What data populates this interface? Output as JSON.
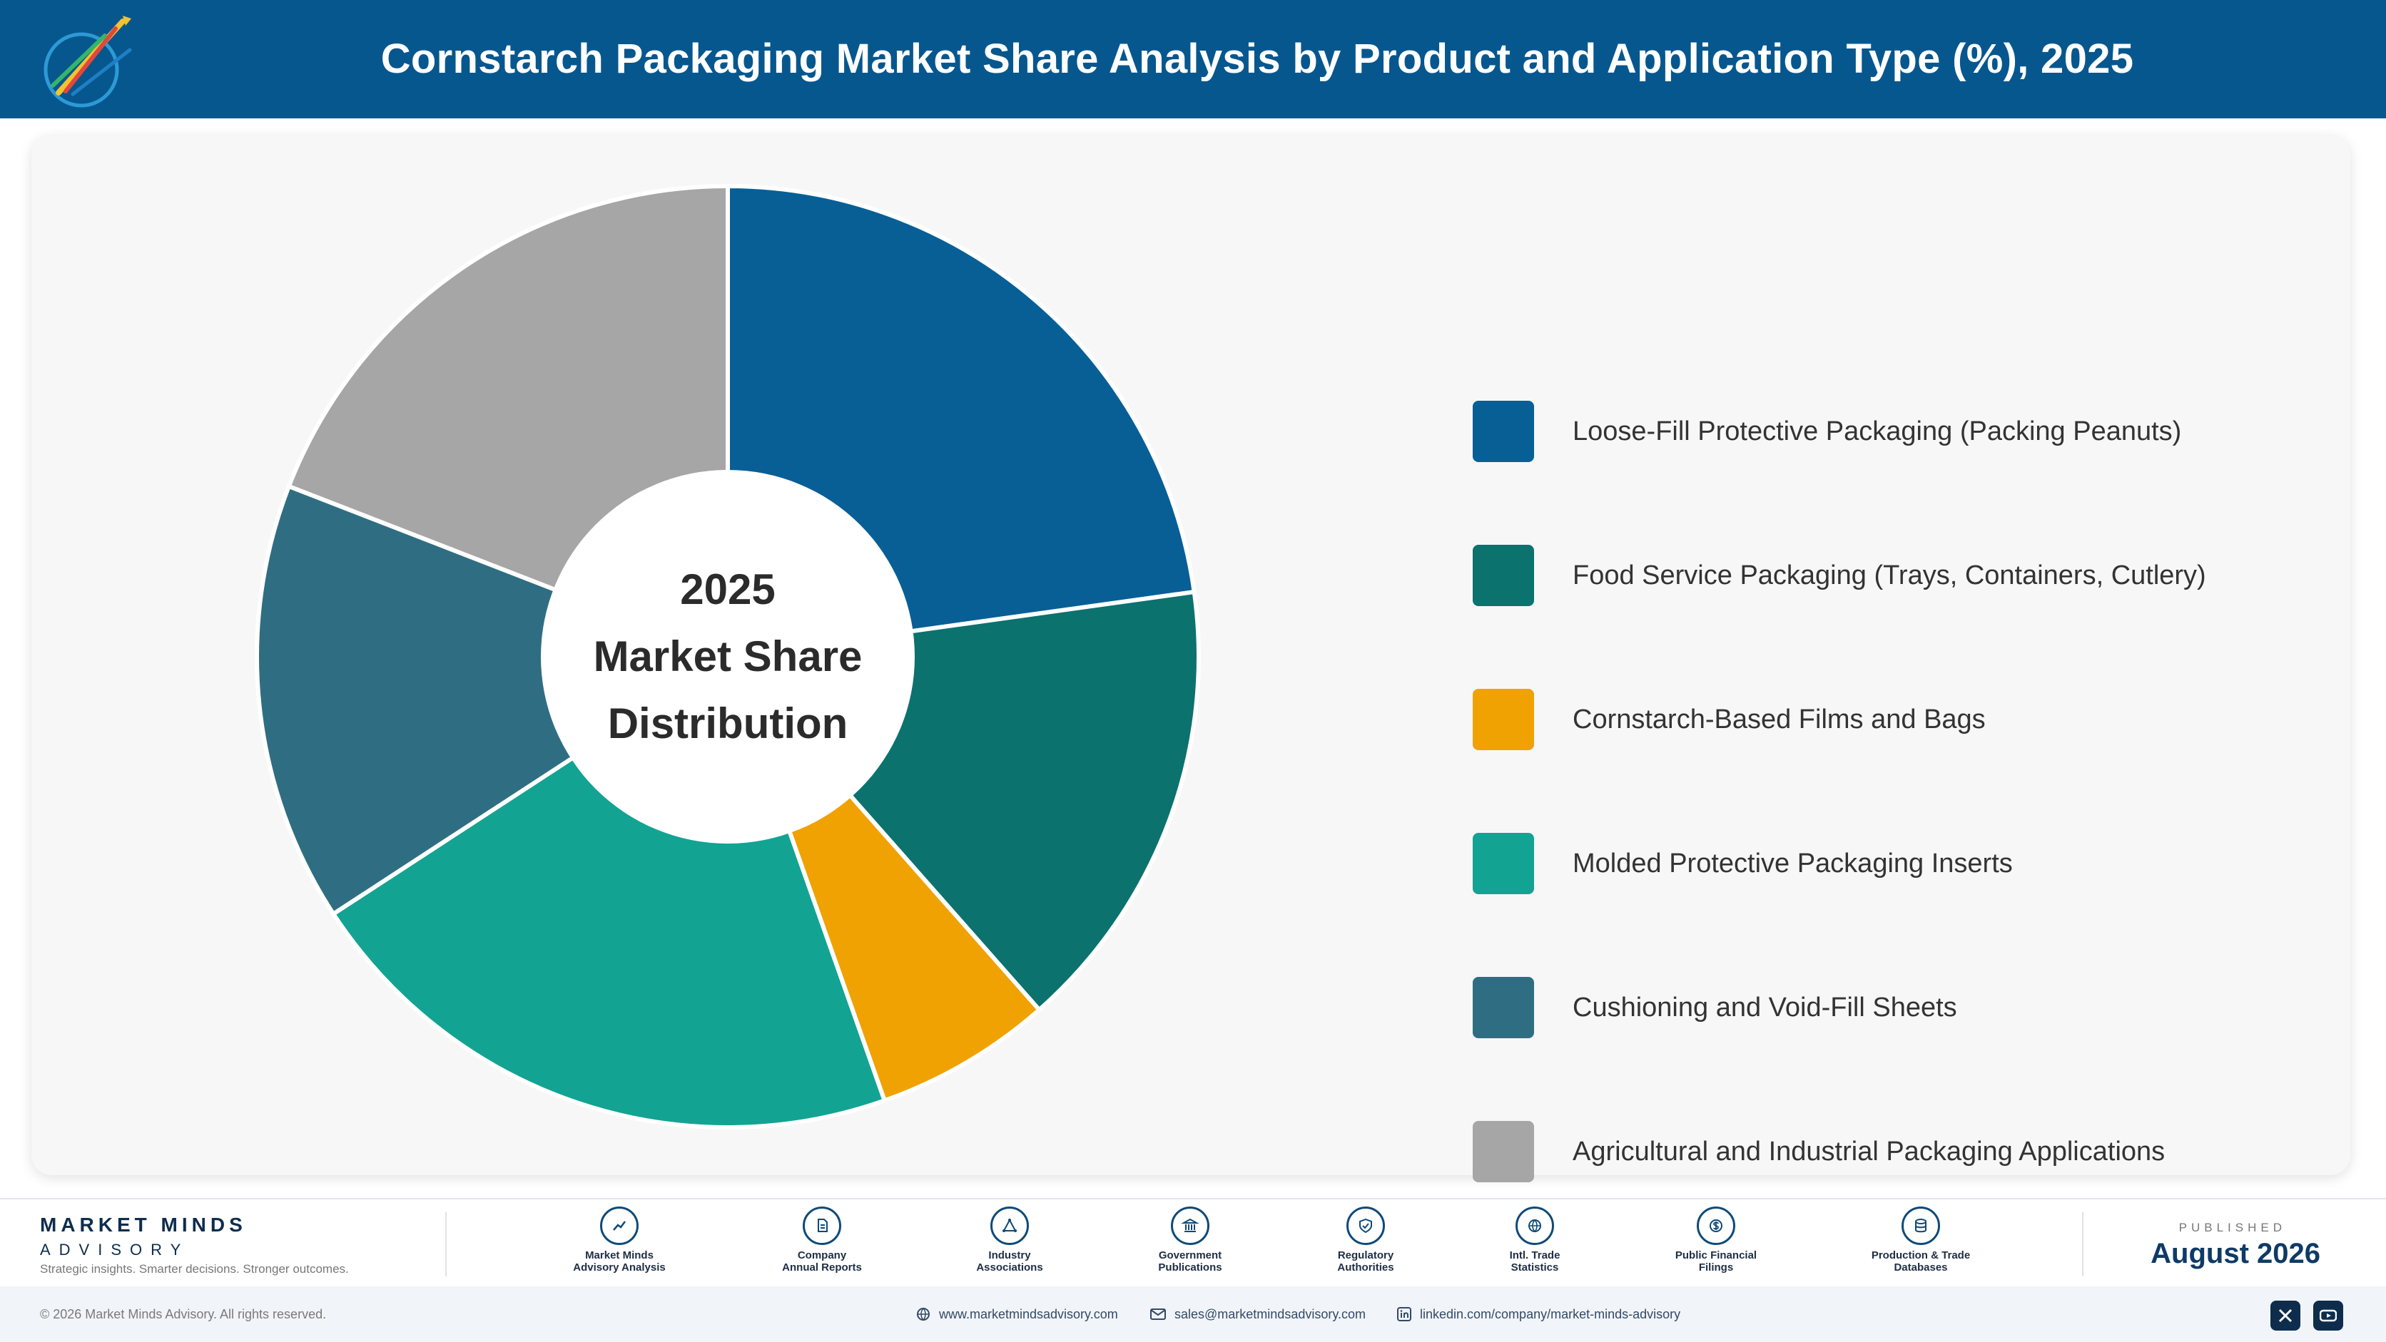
{
  "header": {
    "title": "Cornstarch Packaging Market Share Analysis by Product and Application Type (%), 2025"
  },
  "chart_data": {
    "type": "pie",
    "title": "Cornstarch Packaging Market Share Analysis by Product and Application Type (%), 2025",
    "center_label": [
      "2025",
      "Market Share",
      "Distribution"
    ],
    "categories": [
      "Loose-Fill Protective Packaging (Packing Peanuts)",
      "Food Service Packaging (Trays, Containers, Cutlery)",
      "Cornstarch-Based Films and Bags",
      "Molded Protective Packaging Inserts",
      "Cushioning and Void-Fill Sheets",
      "Agricultural and Industrial Packaging Applications"
    ],
    "values": [
      22.8,
      15.7,
      6.1,
      21.2,
      15.1,
      19.1
    ],
    "colors": [
      "#075f96",
      "#0b726e",
      "#f0a202",
      "#12a393",
      "#2f6e82",
      "#a6a6a6"
    ],
    "legend_position": "right"
  },
  "footer": {
    "brand_name": "MARKET MINDS",
    "brand_sub": "ADVISORY",
    "brand_tagline": "Strategic insights. Smarter decisions. Stronger outcomes.",
    "sources": [
      {
        "label": "Market Minds\nAdvisory Analysis",
        "icon": "chart-line-icon"
      },
      {
        "label": "Company\nAnnual Reports",
        "icon": "document-icon"
      },
      {
        "label": "Industry\nAssociations",
        "icon": "network-icon"
      },
      {
        "label": "Government\nPublications",
        "icon": "building-icon"
      },
      {
        "label": "Regulatory\nAuthorities",
        "icon": "shield-check-icon"
      },
      {
        "label": "Intl. Trade\nStatistics",
        "icon": "globe-icon"
      },
      {
        "label": "Public Financial\nFilings",
        "icon": "dollar-icon"
      },
      {
        "label": "Production & Trade\nDatabases",
        "icon": "database-icon"
      }
    ],
    "published_label": "PUBLISHED",
    "published_date": "August 2026"
  },
  "bottom_bar": {
    "copyright": "© 2026 Market Minds Advisory. All rights reserved.",
    "website": "www.marketmindsadvisory.com",
    "email": "sales@marketmindsadvisory.com",
    "linkedin": "linkedin.com/company/market-minds-advisory"
  }
}
